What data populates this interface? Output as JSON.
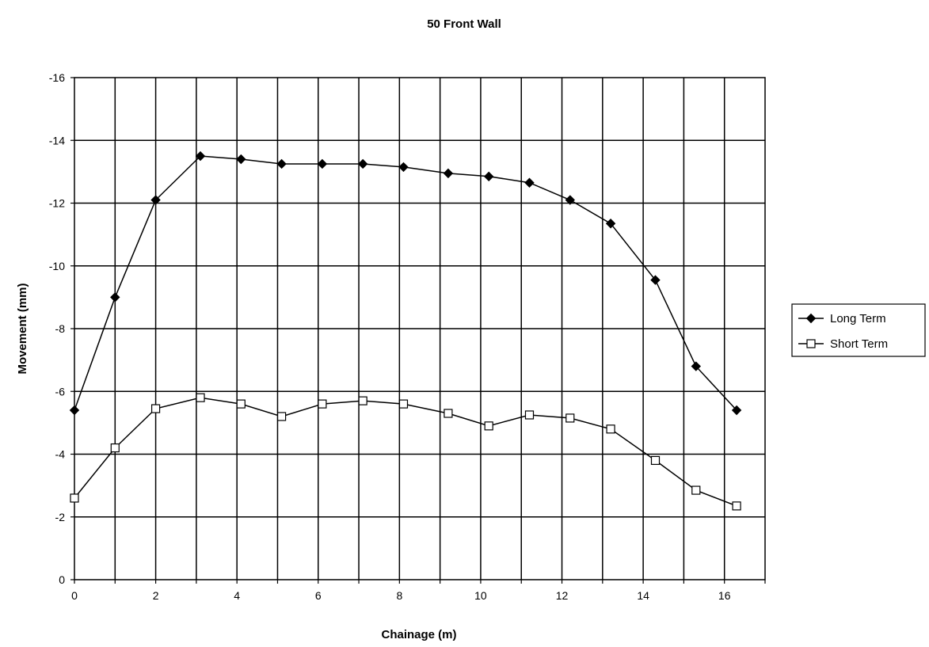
{
  "chart_data": {
    "type": "line",
    "title": "50 Front Wall",
    "xlabel": "Chainage (m)",
    "ylabel": "Movement (mm)",
    "xlim": [
      0,
      17
    ],
    "ylim": [
      -16,
      0
    ],
    "y_axis_reversed": true,
    "x_ticks": [
      0,
      2,
      4,
      6,
      8,
      10,
      12,
      14,
      16
    ],
    "y_ticks": [
      0,
      -2,
      -4,
      -6,
      -8,
      -10,
      -12,
      -14,
      -16
    ],
    "x_tick_labels": [
      "0",
      "2",
      "4",
      "6",
      "8",
      "10",
      "12",
      "14",
      "16"
    ],
    "y_tick_labels": [
      "0",
      "-2",
      "-4",
      "-6",
      "-8",
      "-10",
      "-12",
      "-14",
      "-16"
    ],
    "grid": true,
    "legend_position": "right",
    "series": [
      {
        "name": "Long Term",
        "marker": "filled-diamond",
        "x": [
          0,
          1,
          2,
          3.1,
          4.1,
          5.1,
          6.1,
          7.1,
          8.1,
          9.2,
          10.2,
          11.2,
          12.2,
          13.2,
          14.3,
          15.3,
          16.3
        ],
        "y": [
          -5.4,
          -9.0,
          -12.1,
          -13.5,
          -13.4,
          -13.25,
          -13.25,
          -13.25,
          -13.15,
          -12.95,
          -12.85,
          -12.65,
          -12.1,
          -11.35,
          -9.55,
          -6.8,
          -5.4
        ]
      },
      {
        "name": "Short Term",
        "marker": "open-square",
        "x": [
          0,
          1,
          2,
          3.1,
          4.1,
          5.1,
          6.1,
          7.1,
          8.1,
          9.2,
          10.2,
          11.2,
          12.2,
          13.2,
          14.3,
          15.3,
          16.3
        ],
        "y": [
          -2.6,
          -4.2,
          -5.45,
          -5.8,
          -5.6,
          -5.2,
          -5.6,
          -5.7,
          -5.6,
          -5.3,
          -4.9,
          -5.25,
          -5.15,
          -4.8,
          -3.8,
          -2.85,
          -2.35
        ]
      }
    ]
  }
}
